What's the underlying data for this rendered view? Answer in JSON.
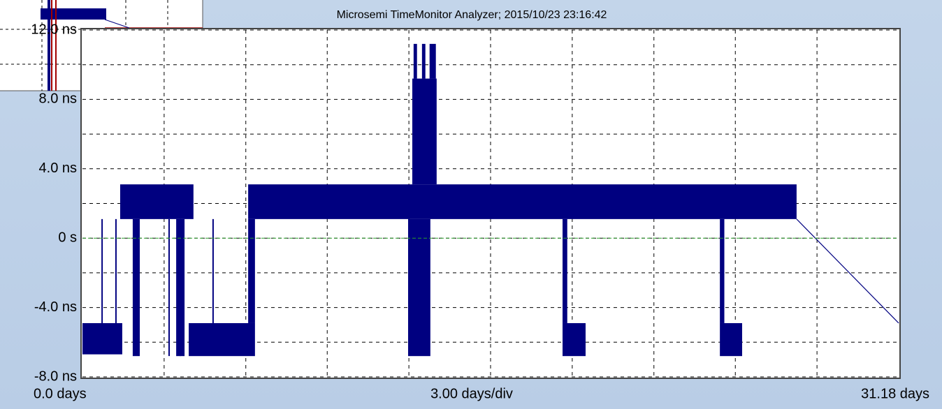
{
  "chart_data": {
    "type": "range",
    "title": "Microsemi TimeMonitor Analyzer; 2015/10/23 23:16:42",
    "x_axis_label": "3.00 days/div",
    "color": "#000080",
    "xlim": [
      0,
      31.18
    ],
    "xticks": [
      {
        "value": 0,
        "label": "0.0 days"
      },
      {
        "value": 31.18,
        "label": "31.18 days"
      }
    ],
    "xgrid": [
      3.12,
      6.24,
      9.35,
      12.47,
      15.59,
      18.71,
      21.83,
      24.94,
      28.06
    ],
    "ylim": [
      -8,
      12
    ],
    "yticks": [
      {
        "value": -8,
        "label": "-8.0 ns"
      },
      {
        "value": -4,
        "label": "-4.0 ns"
      },
      {
        "value": 0,
        "label": "0 s"
      },
      {
        "value": 4,
        "label": "4.0 ns"
      },
      {
        "value": 8,
        "label": "8.0 ns"
      },
      {
        "value": 12,
        "label": "12.0 ns"
      }
    ],
    "ygrid": [
      -6,
      -2,
      2,
      6,
      10
    ],
    "grid": true,
    "zero_line": 0,
    "zero_line_color": "#2a9d2a",
    "blocks": [
      {
        "x": [
          0,
          1.52
        ],
        "y": [
          -6.7,
          -4.9
        ]
      },
      {
        "x": [
          1.44,
          4.24
        ],
        "y": [
          1.1,
          3.1
        ]
      },
      {
        "x": [
          1.92,
          2.19
        ],
        "y": [
          -6.8,
          1.1
        ]
      },
      {
        "x": [
          3.58,
          3.9
        ],
        "y": [
          -6.8,
          1.1
        ]
      },
      {
        "x": [
          4.06,
          6.59
        ],
        "y": [
          -6.8,
          -4.9
        ]
      },
      {
        "x": [
          6.33,
          27.28
        ],
        "y": [
          1.1,
          3.1
        ]
      },
      {
        "x": [
          6.33,
          6.59
        ],
        "y": [
          -4.9,
          1.1
        ]
      },
      {
        "x": [
          12.44,
          13.29
        ],
        "y": [
          -6.8,
          1.1
        ]
      },
      {
        "x": [
          12.6,
          13.53
        ],
        "y": [
          3.1,
          9.2
        ]
      },
      {
        "x": [
          12.65,
          12.78
        ],
        "y": [
          9.2,
          11.2
        ]
      },
      {
        "x": [
          12.97,
          13.1
        ],
        "y": [
          9.2,
          11.2
        ]
      },
      {
        "x": [
          13.26,
          13.5
        ],
        "y": [
          9.2,
          11.2
        ]
      },
      {
        "x": [
          18.34,
          18.52
        ],
        "y": [
          -4.9,
          1.1
        ]
      },
      {
        "x": [
          18.34,
          19.22
        ],
        "y": [
          -6.8,
          -4.9
        ]
      },
      {
        "x": [
          24.35,
          24.52
        ],
        "y": [
          -4.9,
          1.1
        ]
      },
      {
        "x": [
          24.35,
          25.2
        ],
        "y": [
          -6.8,
          -4.9
        ]
      }
    ],
    "spikes": {
      "x": [
        0.75,
        1.28,
        3.31,
        3.74,
        4.99
      ],
      "low": [
        -4.9,
        -4.9,
        -6.8,
        -6.8,
        -4.9
      ],
      "high": [
        1.1,
        1.1,
        1.1,
        1.1,
        1.1
      ]
    },
    "line": {
      "x": [
        27.28,
        31.18
      ],
      "y": [
        1.1,
        -4.9
      ]
    }
  }
}
